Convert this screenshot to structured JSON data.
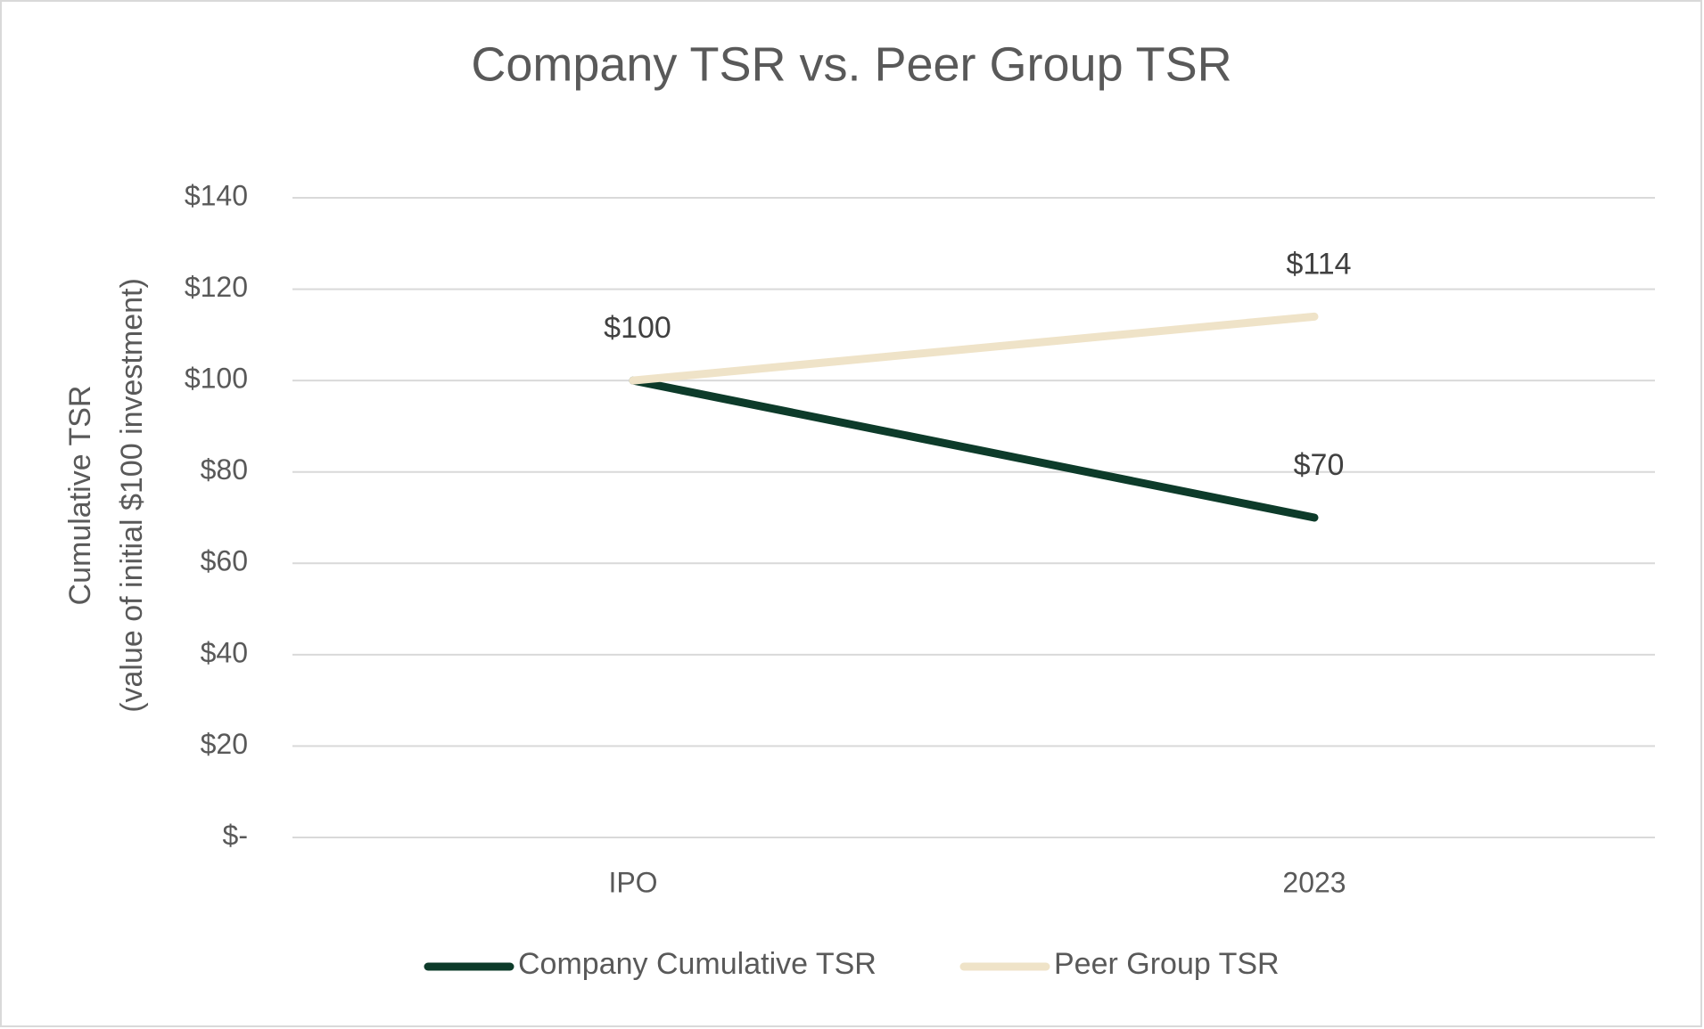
{
  "chart_data": {
    "type": "line",
    "title": "Company TSR vs. Peer Group TSR",
    "y_label": [
      "Cumulative TSR",
      "(value of initial $100 investment)"
    ],
    "categories": [
      "IPO",
      "2023"
    ],
    "series": [
      {
        "name": "Company Cumulative TSR",
        "color": "#0d3b2a",
        "values": [
          100,
          70
        ],
        "value_labels": [
          null,
          "$70"
        ]
      },
      {
        "name": "Peer Group TSR",
        "color": "#efe3c8",
        "values": [
          100,
          114
        ],
        "value_labels": [
          "$100",
          "$114"
        ]
      }
    ],
    "ylim": [
      0,
      140
    ],
    "yticks": [
      {
        "value": 0,
        "label": "$-"
      },
      {
        "value": 20,
        "label": "$20"
      },
      {
        "value": 40,
        "label": "$40"
      },
      {
        "value": 60,
        "label": "$60"
      },
      {
        "value": 80,
        "label": "$80"
      },
      {
        "value": 100,
        "label": "$100"
      },
      {
        "value": 120,
        "label": "$120"
      },
      {
        "value": 140,
        "label": "$140"
      }
    ],
    "grid": true,
    "legend": "bottom"
  }
}
